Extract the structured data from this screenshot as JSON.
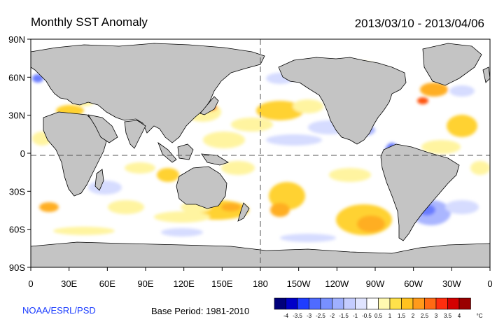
{
  "title": "Monthly SST Anomaly",
  "date_range": "2013/03/10 - 2013/04/06",
  "credit": "NOAA/ESRL/PSD",
  "base_period": "Base Period: 1981-2010",
  "lat_labels": [
    "90N",
    "60N",
    "30N",
    "0",
    "30S",
    "60S",
    "90S"
  ],
  "lon_labels": [
    "0",
    "30E",
    "60E",
    "90E",
    "120E",
    "150E",
    "180",
    "150W",
    "120W",
    "90W",
    "60W",
    "30W",
    "0"
  ],
  "colorbar": {
    "tick_labels": [
      "-4",
      "-3.5",
      "-3",
      "-2.5",
      "-2",
      "-1.5",
      "-1",
      "-0.5",
      "0.5",
      "1",
      "1.5",
      "2",
      "2.5",
      "3",
      "3.5",
      "4"
    ],
    "unit": "°C",
    "colors": [
      "#00007a",
      "#0000c8",
      "#1f3dff",
      "#4f6bff",
      "#7890ff",
      "#9fb0ff",
      "#c4ccff",
      "#e0e4ff",
      "#ffffff",
      "#fff9b0",
      "#ffe14a",
      "#ffc21f",
      "#ff9a1a",
      "#ff6a14",
      "#ff2e0e",
      "#d40000",
      "#9a0000"
    ]
  },
  "colors": {
    "land": "#c4c4c4",
    "coast": "#000000",
    "warm_light": "#fff4a0",
    "warm_mid": "#ffd233",
    "warm_strong": "#ffae22",
    "warm_hot": "#ff5511",
    "cool_light": "#d6dcff",
    "cool_mid": "#aab6ff",
    "cool_strong": "#6b7dff",
    "cool_deep": "#3340ff"
  }
}
